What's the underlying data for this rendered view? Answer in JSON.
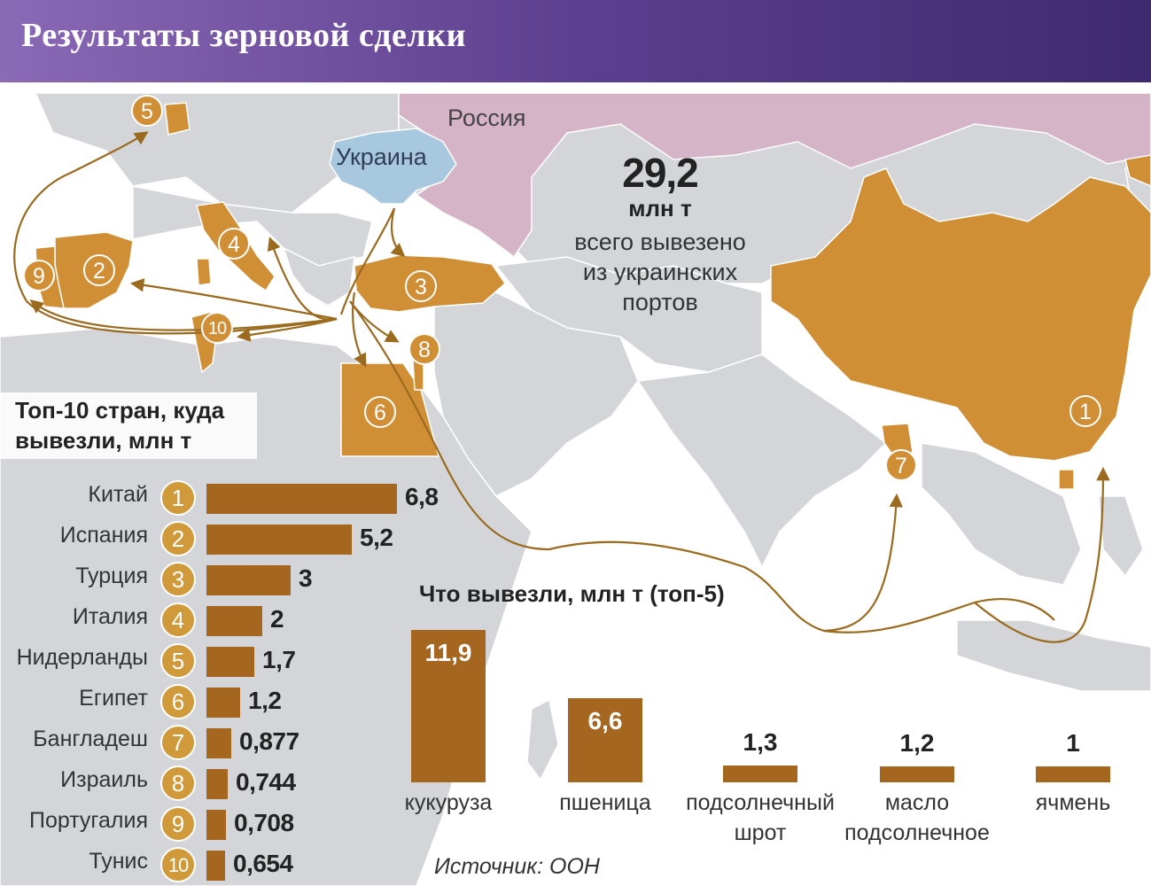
{
  "title": "Результаты зерновой сделки",
  "map_labels": {
    "russia": "Россия",
    "ukraine": "Украина"
  },
  "total": {
    "value": "29,2",
    "unit": "млн т",
    "description_lines": [
      "всего вывезено",
      "из украинских",
      "портов"
    ]
  },
  "colors": {
    "header_start": "#8a69b5",
    "header_end": "#3e2a6e",
    "destination_country": "#d08f35",
    "ukraine": "#a8c8e0",
    "russia": "#d6b4c8",
    "land": "#d3d5d9",
    "sea": "#ffffff",
    "bar": "#a5671f",
    "route": "#9a6a1f"
  },
  "top10": {
    "title_lines": [
      "Топ-10 стран, куда",
      "вывезли, млн т"
    ],
    "rows": [
      {
        "rank": "1",
        "country": "Китай",
        "value": 6.8,
        "label": "6,8"
      },
      {
        "rank": "2",
        "country": "Испания",
        "value": 5.2,
        "label": "5,2"
      },
      {
        "rank": "3",
        "country": "Турция",
        "value": 3,
        "label": "3"
      },
      {
        "rank": "4",
        "country": "Италия",
        "value": 2,
        "label": "2"
      },
      {
        "rank": "5",
        "country": "Нидерланды",
        "value": 1.7,
        "label": "1,7"
      },
      {
        "rank": "6",
        "country": "Египет",
        "value": 1.2,
        "label": "1,2"
      },
      {
        "rank": "7",
        "country": "Бангладеш",
        "value": 0.877,
        "label": "0,877"
      },
      {
        "rank": "8",
        "country": "Израиль",
        "value": 0.744,
        "label": "0,744"
      },
      {
        "rank": "9",
        "country": "Португалия",
        "value": 0.708,
        "label": "0,708"
      },
      {
        "rank": "10",
        "country": "Тунис",
        "value": 0.654,
        "label": "0,654"
      }
    ]
  },
  "top5": {
    "title": "Что вывезли, млн т (топ-5)",
    "items": [
      {
        "product_lines": [
          "кукуруза"
        ],
        "value": 11.9,
        "label": "11,9"
      },
      {
        "product_lines": [
          "пшеница"
        ],
        "value": 6.6,
        "label": "6,6"
      },
      {
        "product_lines": [
          "подсолнечный",
          "шрот"
        ],
        "value": 1.3,
        "label": "1,3"
      },
      {
        "product_lines": [
          "масло",
          "подсолнечное"
        ],
        "value": 1.2,
        "label": "1,2"
      },
      {
        "product_lines": [
          "ячмень"
        ],
        "value": 1,
        "label": "1"
      }
    ]
  },
  "map_markers": [
    {
      "rank": "1",
      "country": "Китай"
    },
    {
      "rank": "2",
      "country": "Испания"
    },
    {
      "rank": "3",
      "country": "Турция"
    },
    {
      "rank": "4",
      "country": "Италия"
    },
    {
      "rank": "5",
      "country": "Нидерланды"
    },
    {
      "rank": "6",
      "country": "Египет"
    },
    {
      "rank": "7",
      "country": "Бангладеш"
    },
    {
      "rank": "8",
      "country": "Израиль"
    },
    {
      "rank": "9",
      "country": "Португалия"
    },
    {
      "rank": "10",
      "country": "Тунис"
    }
  ],
  "source": "Источник: ООН"
}
